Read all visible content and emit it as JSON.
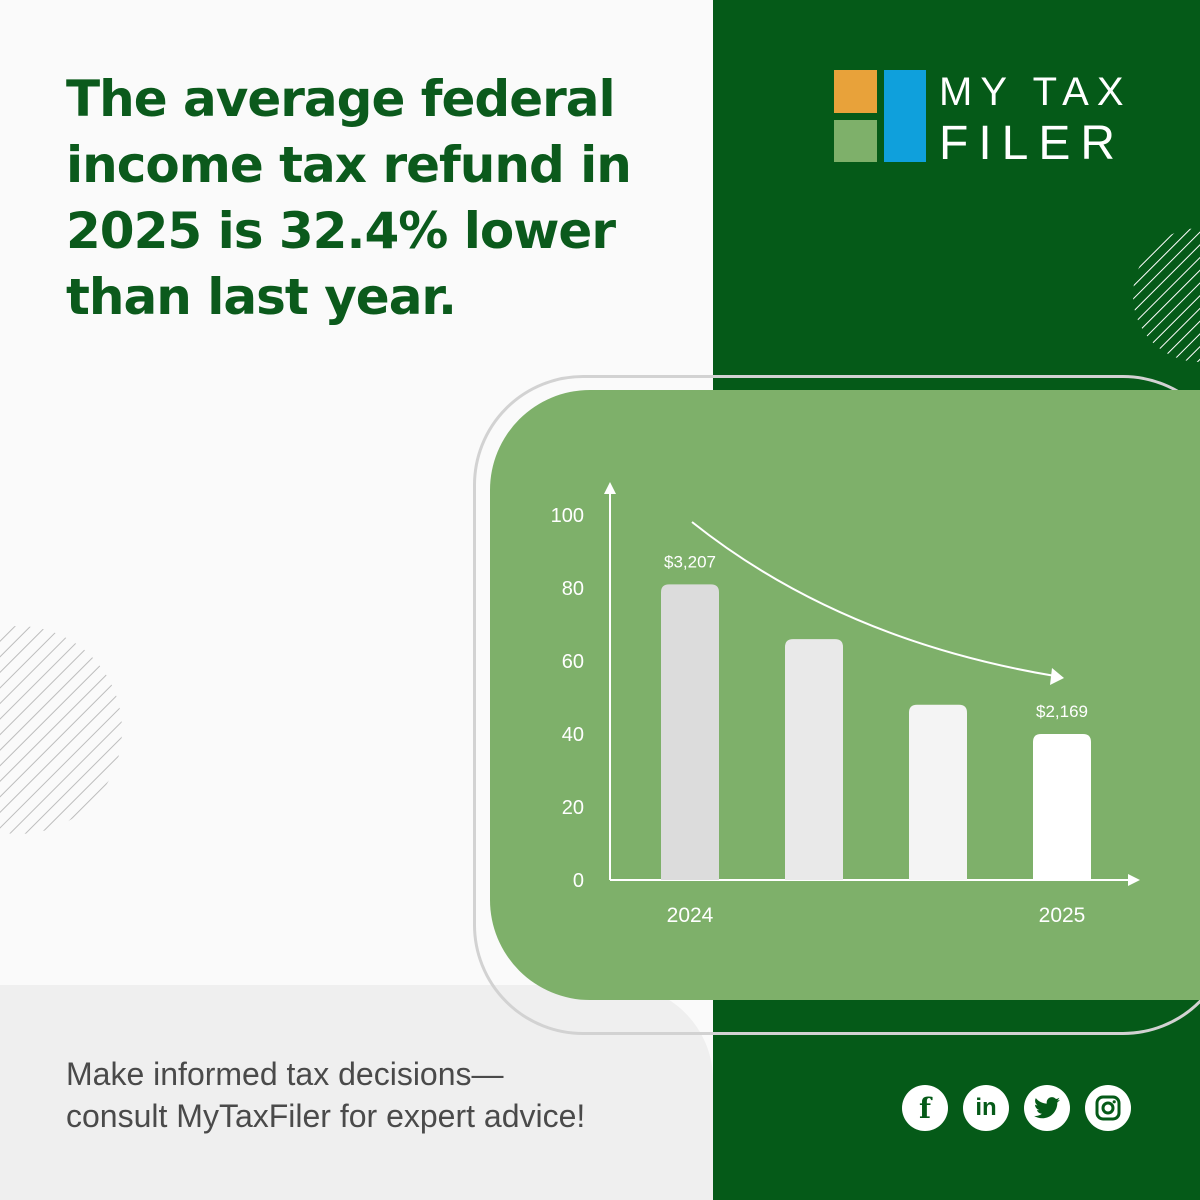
{
  "headline": "The average federal income tax refund in 2025 is 32.4% lower than last year.",
  "logo": {
    "line1": "MY TAX",
    "line2": "FILER",
    "colors": [
      "#e8a23a",
      "#0fa0dc",
      "#7eb06a"
    ]
  },
  "tagline": {
    "line1": "Make informed tax decisions—",
    "line2": "consult MyTaxFiler for expert advice!"
  },
  "social": {
    "facebook": "f",
    "linkedin": "in",
    "twitter": "twitter-icon",
    "instagram": "instagram-icon"
  },
  "colors": {
    "dark_green": "#055a18",
    "light_green": "#7eb06a",
    "headline": "#0b5a1c"
  },
  "chart_data": {
    "type": "bar",
    "categories": [
      "2024",
      "",
      "",
      "2025"
    ],
    "values": [
      81,
      66,
      48,
      40
    ],
    "data_labels": [
      "$3,207",
      "",
      "",
      "$2,169"
    ],
    "bar_colors": [
      "#dcdcdc",
      "#e9e9e9",
      "#f4f4f4",
      "#ffffff"
    ],
    "ylim": [
      0,
      100
    ],
    "yticks": [
      "0",
      "20",
      "40",
      "60",
      "80",
      "100"
    ],
    "trend_arrow": "downward",
    "grid": false
  }
}
